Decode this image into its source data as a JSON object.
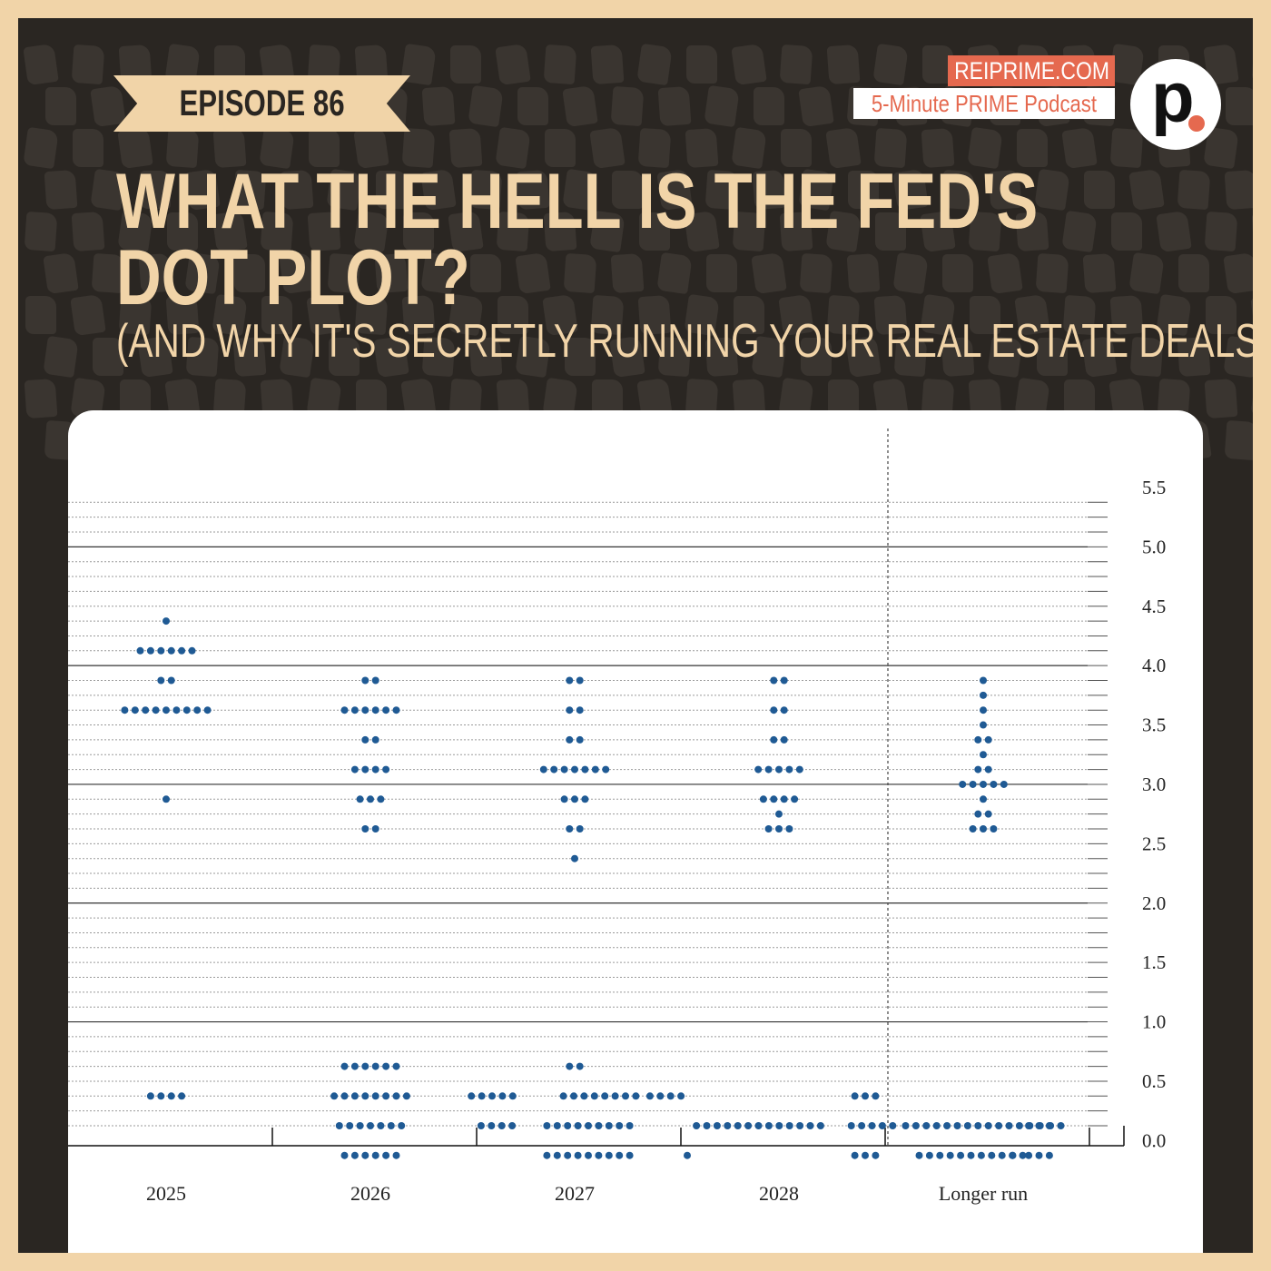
{
  "episode_label": "EPISODE 86",
  "brand": {
    "site": "REIPRIME.COM",
    "podcast": "5-Minute PRIME Podcast",
    "logo_letter": "p"
  },
  "headline": "WHAT THE HELL IS THE FED'S DOT PLOT?",
  "subheadline": "(AND WHY IT'S SECRETLY RUNNING YOUR REAL ESTATE DEALS)",
  "colors": {
    "frame": "#f1d4a8",
    "background": "#2a2622",
    "accent": "#e5694f",
    "dot": "#1f5a94",
    "text_light": "#f1d4a8"
  },
  "chart_data": {
    "type": "scatter",
    "categories": [
      "2025",
      "2026",
      "2027",
      "2028",
      "Longer run"
    ],
    "ylim": [
      -0.4,
      5.5
    ],
    "yticks": [
      "0.0",
      "0.5",
      "1.0",
      "1.5",
      "2.0",
      "2.5",
      "3.0",
      "3.5",
      "4.0",
      "4.5",
      "5.0",
      "5.5"
    ],
    "grid": "dotted every 0.125, solid every 1.0",
    "dot_groups": [
      {
        "category": "2025",
        "y": 4.375,
        "count": 1
      },
      {
        "category": "2025",
        "y": 4.125,
        "count": 6
      },
      {
        "category": "2025",
        "y": 3.875,
        "count": 2
      },
      {
        "category": "2025",
        "y": 3.625,
        "count": 9
      },
      {
        "category": "2025",
        "y": 2.875,
        "count": 1
      },
      {
        "category": "2025",
        "y": 0.375,
        "count": 4
      },
      {
        "category": "2026",
        "y": 3.875,
        "count": 2
      },
      {
        "category": "2026",
        "y": 3.625,
        "count": 6
      },
      {
        "category": "2026",
        "y": 3.375,
        "count": 2
      },
      {
        "category": "2026",
        "y": 3.125,
        "count": 4
      },
      {
        "category": "2026",
        "y": 2.875,
        "count": 3
      },
      {
        "category": "2026",
        "y": 2.625,
        "count": 2
      },
      {
        "category": "2026",
        "y": 0.625,
        "count": 6
      },
      {
        "category": "2026",
        "y": 0.375,
        "count": 8
      },
      {
        "category": "2026",
        "y": 0.125,
        "count": 7
      },
      {
        "category": "2026",
        "y": -0.125,
        "count": 6
      },
      {
        "category": "2027",
        "y": 3.875,
        "count": 2
      },
      {
        "category": "2027",
        "y": 3.625,
        "count": 2
      },
      {
        "category": "2027",
        "y": 3.375,
        "count": 2
      },
      {
        "category": "2027",
        "y": 3.125,
        "count": 7
      },
      {
        "category": "2027",
        "y": 2.875,
        "count": 3
      },
      {
        "category": "2027",
        "y": 2.625,
        "count": 2
      },
      {
        "category": "2027",
        "y": 2.375,
        "count": 1
      },
      {
        "category": "2027",
        "y": 0.625,
        "count": 2
      },
      {
        "category": "2027",
        "y": 0.375,
        "count": 5,
        "offset": -1.82
      },
      {
        "category": "2027",
        "y": 0.125,
        "count": 4,
        "offset": -1.72
      },
      {
        "category": "2027",
        "y": 0.375,
        "count": 8,
        "offset": 0.55
      },
      {
        "category": "2027",
        "y": 0.125,
        "count": 9,
        "offset": 0.3
      },
      {
        "category": "2027",
        "y": -0.125,
        "count": 9,
        "offset": 0.3
      },
      {
        "category": "2028",
        "y": 3.875,
        "count": 2
      },
      {
        "category": "2028",
        "y": 3.625,
        "count": 2
      },
      {
        "category": "2028",
        "y": 3.375,
        "count": 2
      },
      {
        "category": "2028",
        "y": 3.125,
        "count": 5
      },
      {
        "category": "2028",
        "y": 2.875,
        "count": 4
      },
      {
        "category": "2028",
        "y": 2.75,
        "count": 1
      },
      {
        "category": "2028",
        "y": 2.625,
        "count": 3
      },
      {
        "category": "2028",
        "y": 0.375,
        "count": 4,
        "offset": -2.5
      },
      {
        "category": "2028",
        "y": 0.125,
        "count": 13,
        "offset": -0.45
      },
      {
        "category": "2028",
        "y": -0.125,
        "count": 1,
        "offset": -2.02
      },
      {
        "category": "2028",
        "y": 0.375,
        "count": 3,
        "offset": 1.9
      },
      {
        "category": "2028",
        "y": 0.125,
        "count": 5,
        "offset": 2.05
      },
      {
        "category": "2028",
        "y": -0.125,
        "count": 3,
        "offset": 1.9
      },
      {
        "category": "Longer run",
        "y": 3.875,
        "count": 1
      },
      {
        "category": "Longer run",
        "y": 3.75,
        "count": 1
      },
      {
        "category": "Longer run",
        "y": 3.625,
        "count": 1
      },
      {
        "category": "Longer run",
        "y": 3.5,
        "count": 1
      },
      {
        "category": "Longer run",
        "y": 3.375,
        "count": 2
      },
      {
        "category": "Longer run",
        "y": 3.25,
        "count": 1
      },
      {
        "category": "Longer run",
        "y": 3.125,
        "count": 2
      },
      {
        "category": "Longer run",
        "y": 3.0,
        "count": 5
      },
      {
        "category": "Longer run",
        "y": 2.875,
        "count": 1
      },
      {
        "category": "Longer run",
        "y": 2.75,
        "count": 2
      },
      {
        "category": "Longer run",
        "y": 2.625,
        "count": 3
      },
      {
        "category": "Longer run",
        "y": 0.125,
        "count": 16,
        "offset": 0.0
      },
      {
        "category": "Longer run",
        "y": -0.125,
        "count": 11,
        "offset": -0.27
      },
      {
        "category": "Longer run",
        "y": -0.125,
        "count": 1,
        "offset": 0.65
      },
      {
        "category": "Longer run",
        "y": 0.125,
        "count": 3,
        "offset": 1.23
      },
      {
        "category": "Longer run",
        "y": -0.125,
        "count": 3,
        "offset": 1.23
      }
    ]
  }
}
